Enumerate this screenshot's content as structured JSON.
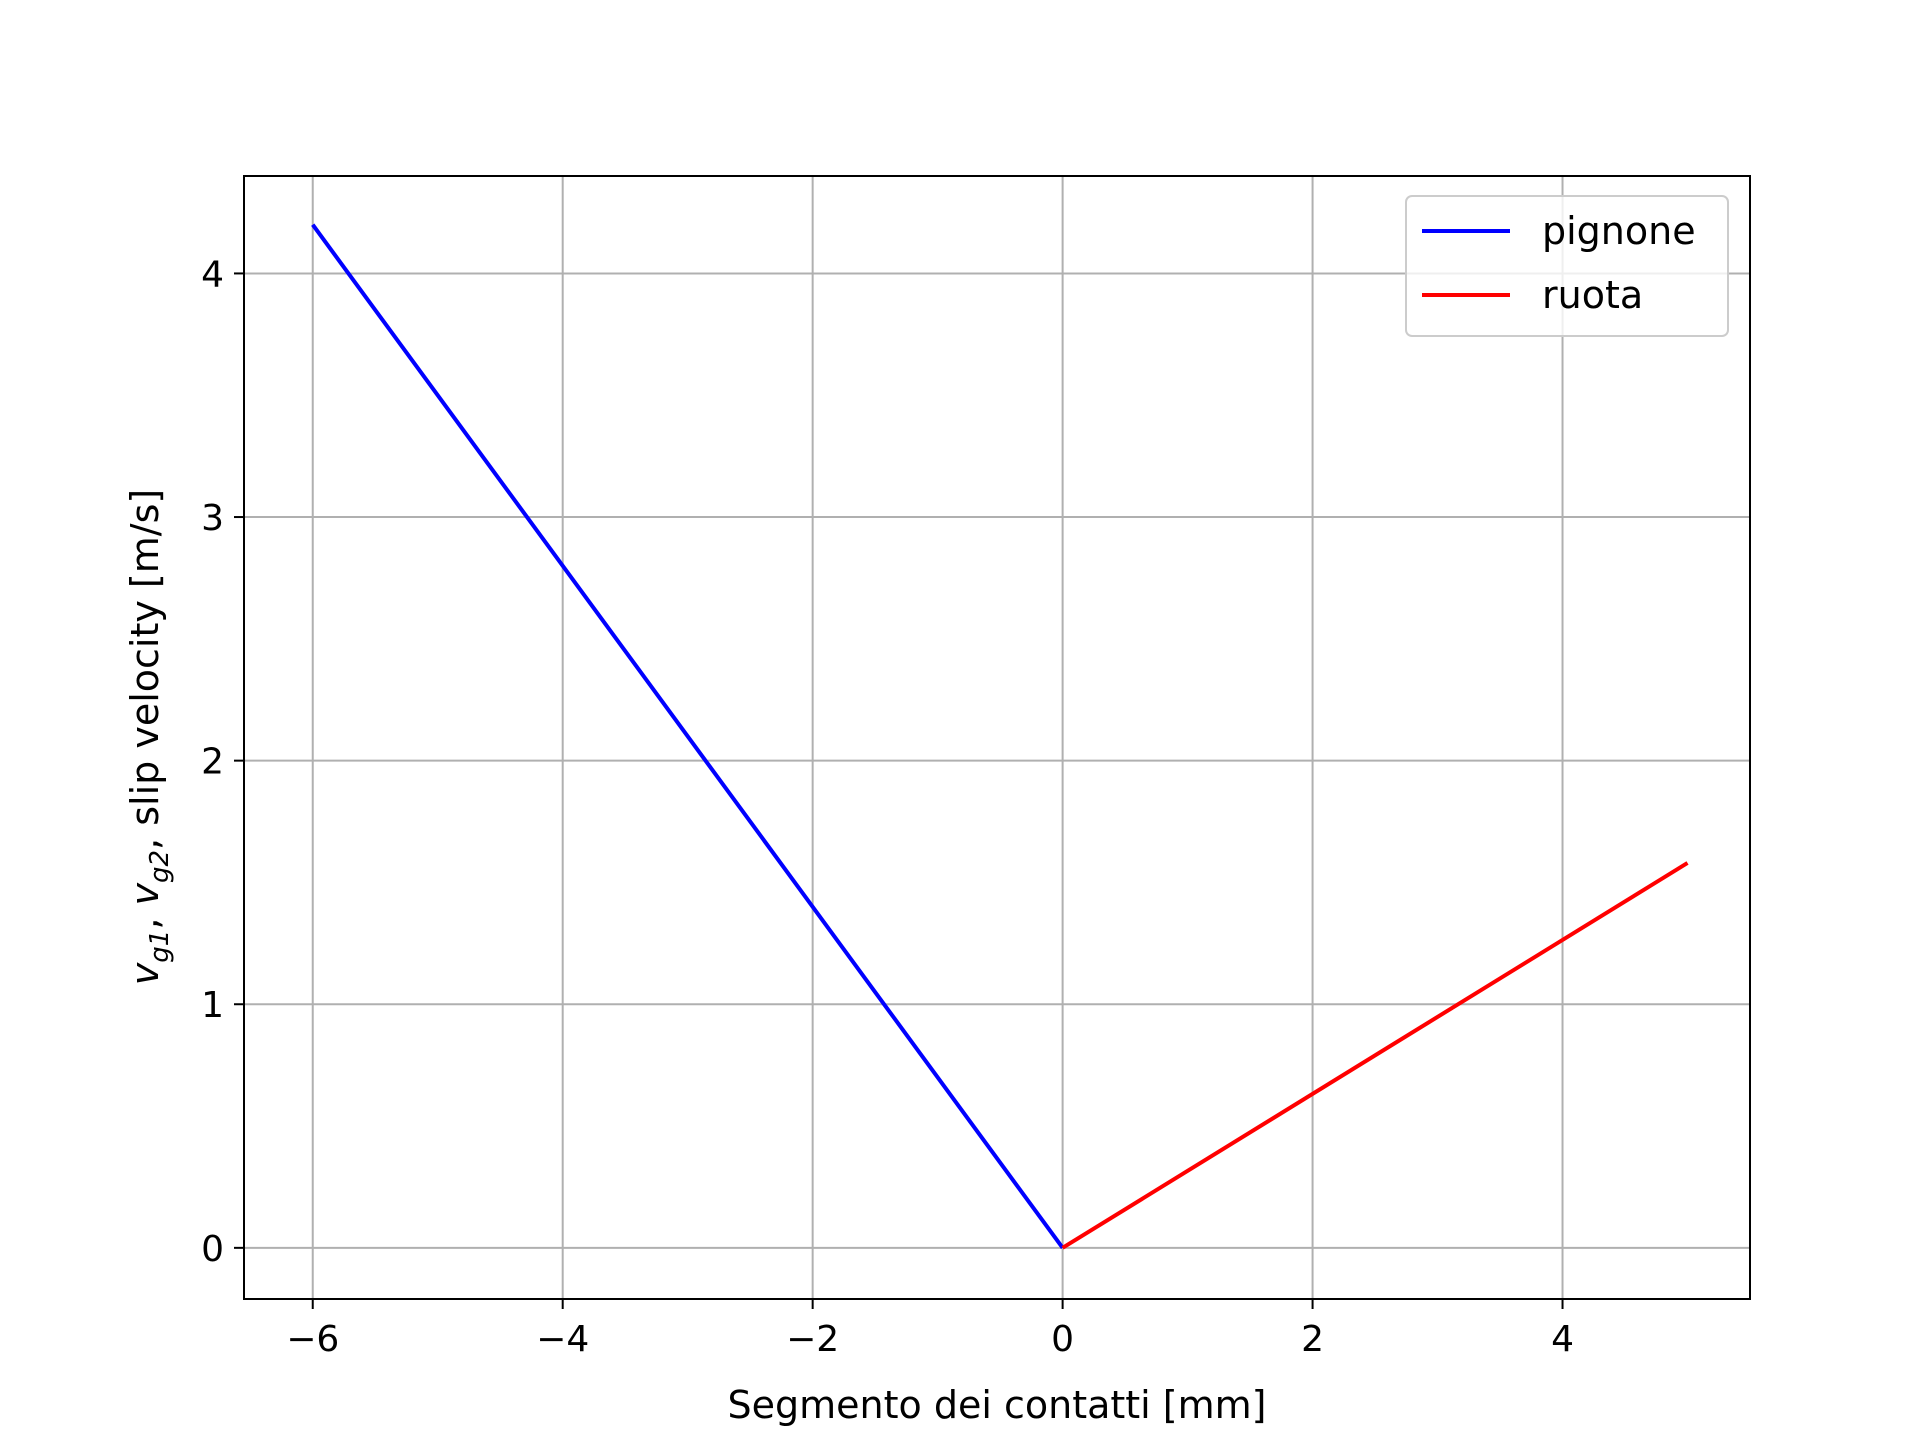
{
  "chart_data": {
    "type": "line",
    "title": "",
    "xlabel": "Segmento dei contatti [mm]",
    "ylabel": {
      "v1": "v",
      "s1": "g1",
      "v2": "v",
      "s2": "g2",
      "sep": ", ",
      "rest": ",  slip velocity [m/s]"
    },
    "xlim": [
      -6.55,
      5.5
    ],
    "ylim": [
      -0.21,
      4.4
    ],
    "xticks": [
      -6,
      -4,
      -2,
      0,
      2,
      4
    ],
    "xtick_labels": [
      "−6",
      "−4",
      "−2",
      "0",
      "2",
      "4"
    ],
    "yticks": [
      0,
      1,
      2,
      3,
      4
    ],
    "ytick_labels": [
      "0",
      "1",
      "2",
      "3",
      "4"
    ],
    "grid": true,
    "legend_position": "top-right",
    "series": [
      {
        "name": "pignone",
        "color": "#0000ff",
        "x": [
          -6,
          0
        ],
        "y": [
          4.2,
          0
        ]
      },
      {
        "name": "ruota",
        "color": "#ff0000",
        "x": [
          0,
          5
        ],
        "y": [
          0,
          1.58
        ]
      }
    ]
  }
}
